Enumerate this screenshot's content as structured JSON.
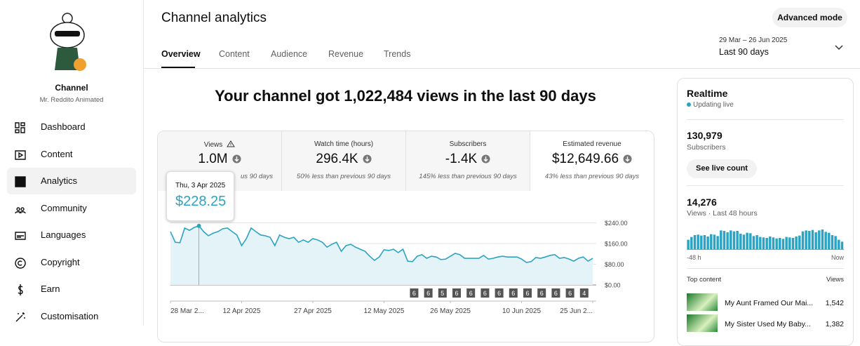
{
  "sidebar": {
    "channel_title": "Channel",
    "channel_name": "Mr. Reddito Animated",
    "nav": [
      "Dashboard",
      "Content",
      "Analytics",
      "Community",
      "Languages",
      "Copyright",
      "Earn",
      "Customisation"
    ]
  },
  "header": {
    "title": "Channel analytics",
    "tabs": [
      "Overview",
      "Content",
      "Audience",
      "Revenue",
      "Trends"
    ],
    "button": "Advanced mode",
    "date_range": "29 Mar – 26 Jun 2025",
    "period": "Last 90 days"
  },
  "headline": "Your channel got 1,022,484 views in the last 90 days",
  "metrics": [
    {
      "label": "Views",
      "value": "1.0M",
      "comparison": "us 90 days"
    },
    {
      "label": "Watch time (hours)",
      "value": "296.4K",
      "comparison": "50% less than previous 90 days"
    },
    {
      "label": "Subscribers",
      "value": "-1.4K",
      "comparison": "145% less than previous 90 days"
    },
    {
      "label": "Estimated revenue",
      "value": "$12,649.66",
      "comparison": "43% less than previous 90 days"
    }
  ],
  "chart_data": [
    {
      "type": "line",
      "color": "#2ba4c4",
      "x": [
        0,
        1,
        2,
        3,
        4,
        5,
        6,
        7,
        8,
        9,
        10,
        11,
        12,
        13,
        14,
        15,
        16,
        17,
        18,
        19,
        20,
        21,
        22,
        23,
        24,
        25,
        26,
        27,
        28,
        29,
        30,
        31,
        32,
        33,
        34,
        35,
        36,
        37,
        38,
        39,
        40,
        41,
        42,
        43,
        44,
        45,
        46,
        47,
        48,
        49,
        50,
        51,
        52,
        53,
        54,
        55,
        56,
        57,
        58,
        59,
        60,
        61,
        62,
        63,
        64,
        65,
        66,
        67,
        68,
        69,
        70,
        71,
        72,
        73,
        74,
        75,
        76,
        77,
        78,
        79,
        80,
        81,
        82,
        83,
        84,
        85,
        86,
        87,
        88,
        89
      ],
      "values": [
        206,
        165,
        163,
        220,
        211,
        222,
        228.25,
        206,
        190,
        200,
        206,
        217,
        220,
        206,
        193,
        152,
        179,
        220,
        206,
        193,
        190,
        184,
        152,
        193,
        184,
        179,
        184,
        165,
        174,
        165,
        179,
        174,
        165,
        146,
        157,
        165,
        130,
        152,
        157,
        146,
        138,
        130,
        111,
        95,
        108,
        136,
        133,
        138,
        125,
        138,
        92,
        90,
        111,
        117,
        103,
        111,
        108,
        98,
        100,
        111,
        122,
        117,
        103,
        103,
        103,
        103,
        114,
        100,
        103,
        108,
        111,
        108,
        108,
        108,
        100,
        87,
        90,
        106,
        103,
        108,
        114,
        117,
        103,
        106,
        100,
        92,
        103,
        108,
        92,
        103
      ],
      "xlim": [
        0,
        89
      ],
      "xticks": [
        {
          "value": 0,
          "label": "28 Mar 2..."
        },
        {
          "value": 15,
          "label": "12 Apr 2025"
        },
        {
          "value": 30,
          "label": "27 Apr 2025"
        },
        {
          "value": 45,
          "label": "12 May 2025"
        },
        {
          "value": 59,
          "label": "26 May 2025"
        },
        {
          "value": 74,
          "label": "10 Jun 2025"
        },
        {
          "value": 89,
          "label": "25 Jun 2..."
        }
      ],
      "ylim": [
        0,
        240
      ],
      "yticks": [
        {
          "value": 0,
          "label": "$0.00"
        },
        {
          "value": 80,
          "label": "$80.00"
        },
        {
          "value": 160,
          "label": "$160.00"
        },
        {
          "value": 240,
          "label": "$240.00"
        }
      ],
      "grid": true,
      "tooltip": {
        "x": 6,
        "title": "Thu, 3 Apr 2025",
        "value": 228.25,
        "label": "$228.25"
      },
      "markers": [
        "6",
        "6",
        "5",
        "6",
        "6",
        "6",
        "6",
        "6",
        "6",
        "6",
        "6",
        "6",
        "4"
      ]
    },
    {
      "type": "bar",
      "color": "#2ba4c4",
      "values": [
        200,
        260,
        300,
        310,
        290,
        300,
        270,
        320,
        310,
        280,
        400,
        390,
        360,
        400,
        380,
        390,
        330,
        310,
        350,
        340,
        280,
        300,
        260,
        250,
        240,
        270,
        250,
        230,
        240,
        220,
        260,
        250,
        240,
        270,
        290,
        380,
        400,
        390,
        410,
        360,
        400,
        420,
        370,
        350,
        300,
        280,
        200,
        160
      ],
      "start_label": "-48 h",
      "end_label": "Now"
    }
  ],
  "realtime": {
    "title": "Realtime",
    "status": "Updating live",
    "subscribers": "130,979",
    "subscribers_label": "Subscribers",
    "button": "See live count",
    "views": "14,276",
    "views_label": "Views · Last 48 hours",
    "top_content_label": "Top content",
    "views_column": "Views",
    "top_content": [
      {
        "title": "My Aunt Framed Our Mai...",
        "views": "1,542"
      },
      {
        "title": "My Sister Used My Baby...",
        "views": "1,382"
      }
    ]
  }
}
